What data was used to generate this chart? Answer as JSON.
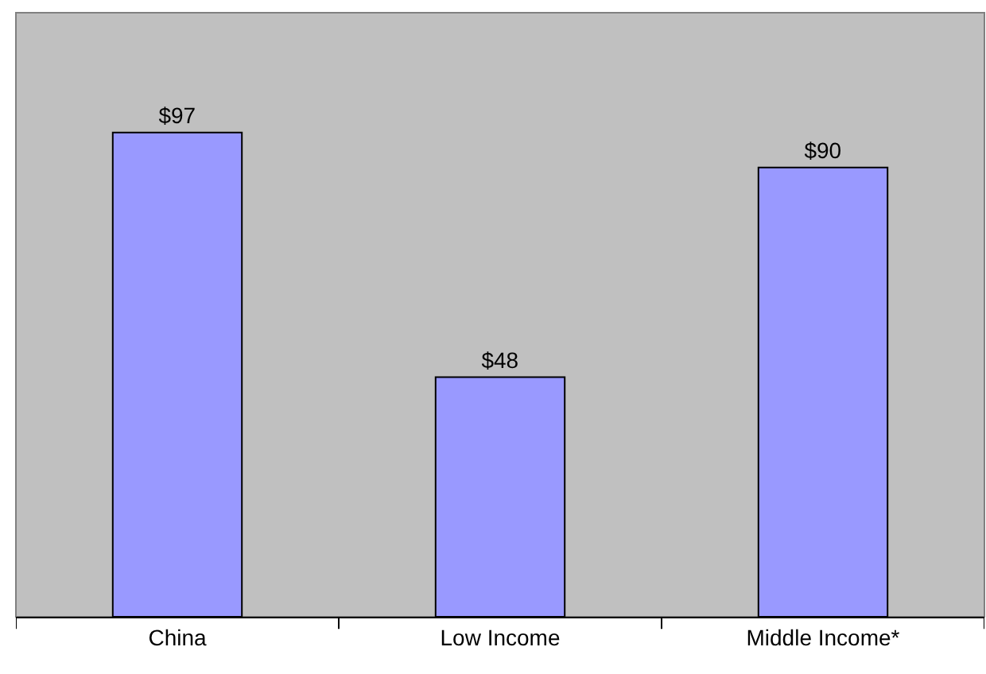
{
  "chart_data": {
    "type": "bar",
    "categories": [
      "China",
      "Low Income",
      "Middle Income*"
    ],
    "values": [
      97,
      48,
      90
    ],
    "value_labels": [
      "$97",
      "$48",
      "$90"
    ],
    "color": "#9999ff",
    "ylim": [
      0,
      121
    ],
    "grid": false,
    "legend": false
  }
}
